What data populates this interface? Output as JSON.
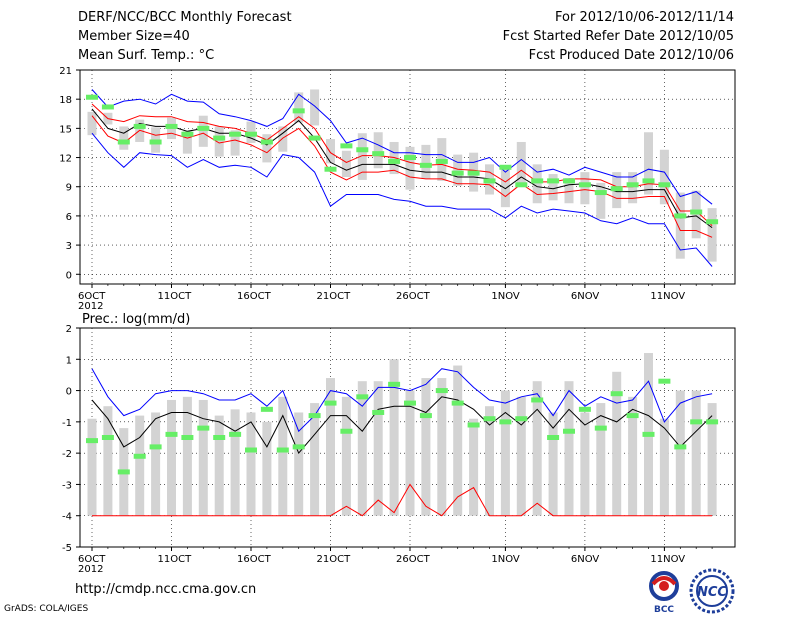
{
  "header": {
    "title": "DERF/NCC/BCC Monthly Forecast",
    "member_size": "Member Size=40",
    "variable": "Mean Surf. Temp.: °C",
    "period": "For 2012/10/06-2012/11/14",
    "started": "Fcst Started Refer Date 2012/10/05",
    "produced": "Fcst Produced Date 2012/10/06"
  },
  "footer": {
    "url": "http://cmdp.ncc.cma.gov.cn",
    "grads": "GrADS: COLA/IGES",
    "logo_left_text": "BCC",
    "logo_right_text": "NCC"
  },
  "colors": {
    "mean": "#000000",
    "extreme": "#0000ff",
    "spread": "#ff0000",
    "box": "#d3d3d3",
    "obs": "#66ee66"
  },
  "chart_data": [
    {
      "type": "line",
      "title": "Mean Surf. Temp.: °C",
      "ylim": [
        -1,
        21
      ],
      "yticks": [
        0,
        3,
        6,
        9,
        12,
        15,
        18,
        21
      ],
      "xticks": [
        {
          "day": 0,
          "label": "6OCT",
          "sub": "2012"
        },
        {
          "day": 5,
          "label": "11OCT"
        },
        {
          "day": 10,
          "label": "16OCT"
        },
        {
          "day": 15,
          "label": "21OCT"
        },
        {
          "day": 20,
          "label": "26OCT"
        },
        {
          "day": 26,
          "label": "1NOV"
        },
        {
          "day": 31,
          "label": "6NOV"
        },
        {
          "day": 36,
          "label": "11NOV"
        }
      ],
      "days": 40,
      "series": [
        {
          "name": "max",
          "values": [
            19,
            17.2,
            17.8,
            18,
            17.5,
            18.5,
            17.8,
            17.7,
            16.5,
            16.2,
            15.8,
            15.2,
            16,
            18.5,
            17.3,
            15.8,
            13.5,
            14,
            13.3,
            12.5,
            12.5,
            12.3,
            12.3,
            11.5,
            11.5,
            12,
            10.5,
            11.8,
            10.5,
            10.8,
            10.2,
            11,
            10.5,
            10,
            10,
            10.8,
            10.5,
            8,
            8.5,
            7.2
          ]
        },
        {
          "name": "upper",
          "values": [
            17.5,
            16,
            15.7,
            16.3,
            16.2,
            16.2,
            15.7,
            15.6,
            15.2,
            15,
            14.5,
            13.8,
            15,
            16.2,
            15,
            12.5,
            11.5,
            12.2,
            12.2,
            12,
            11.5,
            11.2,
            11.3,
            10.8,
            10.7,
            10.5,
            9.5,
            10.7,
            9.5,
            9.5,
            9.8,
            9.8,
            9.7,
            9,
            9,
            9.3,
            9.2,
            6.5,
            6.5,
            5
          ]
        },
        {
          "name": "mean",
          "values": [
            17,
            15,
            14.5,
            15.5,
            15.2,
            15.2,
            14.7,
            15,
            14.5,
            14.5,
            14,
            13.3,
            14.5,
            15.8,
            14,
            11.5,
            10.7,
            11.3,
            11.3,
            11.3,
            10.7,
            10.5,
            10.5,
            10,
            10,
            9.8,
            8.8,
            10,
            9,
            8.8,
            9.2,
            9.3,
            9,
            8.5,
            8.5,
            8.7,
            8.7,
            5.8,
            6,
            4.8
          ]
        },
        {
          "name": "lower",
          "values": [
            16.3,
            14.2,
            13.5,
            14.8,
            14.3,
            14.5,
            14,
            14.5,
            13.5,
            13.8,
            13.3,
            12.5,
            14,
            15,
            13.2,
            10.5,
            9.7,
            10.5,
            10.5,
            10.7,
            10,
            9.8,
            9.8,
            9.3,
            9.3,
            9.2,
            8,
            9.3,
            8.2,
            8.3,
            8.5,
            8.7,
            8.5,
            7.8,
            7.8,
            8,
            8,
            4.5,
            4.5,
            3.8
          ]
        },
        {
          "name": "min",
          "values": [
            14.5,
            12.5,
            11,
            12.5,
            12.3,
            12.2,
            11,
            11.8,
            11,
            11.2,
            11,
            10,
            12.3,
            12,
            10.5,
            7,
            8.2,
            8.2,
            8.2,
            7.7,
            7.5,
            7,
            7,
            6.7,
            6.7,
            6.7,
            5.8,
            7,
            6.3,
            6.7,
            6.5,
            6.3,
            5.5,
            5.2,
            5.8,
            5.2,
            5.2,
            2.5,
            2.7,
            0.8
          ]
        }
      ],
      "boxes": [
        [
          14.3,
          16.7
        ],
        [
          15.4,
          16.6
        ],
        [
          12.8,
          15.2
        ],
        [
          13.6,
          15.9
        ],
        [
          12.5,
          15.1
        ],
        [
          13.9,
          16.1
        ],
        [
          12.4,
          14.7
        ],
        [
          13.1,
          16.3
        ],
        [
          12.1,
          15.2
        ],
        [
          12.2,
          14.8
        ],
        [
          13.5,
          15.7
        ],
        [
          11.5,
          14.4
        ],
        [
          12.6,
          15.2
        ],
        [
          15.6,
          18.7
        ],
        [
          15.3,
          19
        ],
        [
          11.4,
          13.9
        ],
        [
          10,
          12.7
        ],
        [
          9.7,
          14.5
        ],
        [
          10.9,
          14.6
        ],
        [
          10.3,
          13.6
        ],
        [
          8.7,
          13.1
        ],
        [
          9.8,
          13.3
        ],
        [
          9.6,
          14
        ],
        [
          9.1,
          12.3
        ],
        [
          8.5,
          12.5
        ],
        [
          8.2,
          11.3
        ],
        [
          6.9,
          10.9
        ],
        [
          9.2,
          13.6
        ],
        [
          7.3,
          11.3
        ],
        [
          7.6,
          10.3
        ],
        [
          7.3,
          9.9
        ],
        [
          7.2,
          10.5
        ],
        [
          5.7,
          9.4
        ],
        [
          6.8,
          10.5
        ],
        [
          7.3,
          10.5
        ],
        [
          8.2,
          14.6
        ],
        [
          7.2,
          12.8
        ],
        [
          1.6,
          8.4
        ],
        [
          3.7,
          8.6
        ],
        [
          1.3,
          6.8
        ]
      ],
      "observed": [
        18.2,
        17.2,
        13.6,
        15.2,
        13.6,
        15.2,
        14.4,
        15,
        14,
        14.4,
        14.4,
        13.6,
        null,
        16.8,
        14,
        10.8,
        13.2,
        12.8,
        12.4,
        11.6,
        12,
        11.2,
        11.6,
        10.4,
        10.4,
        9.6,
        11,
        9.2,
        9.6,
        9.6,
        9.6,
        9.2,
        8.4,
        8.8,
        9.2,
        9.6,
        9.2,
        6,
        6.4,
        5.4
      ]
    },
    {
      "type": "line",
      "title": "Prec.: log(mm/d)",
      "ylim": [
        -5,
        2
      ],
      "yticks": [
        -5,
        -4,
        -3,
        -2,
        -1,
        0,
        1,
        2
      ],
      "xticks": [
        {
          "day": 0,
          "label": "6OCT",
          "sub": "2012"
        },
        {
          "day": 5,
          "label": "11OCT"
        },
        {
          "day": 10,
          "label": "16OCT"
        },
        {
          "day": 15,
          "label": "21OCT"
        },
        {
          "day": 20,
          "label": "26OCT"
        },
        {
          "day": 26,
          "label": "1NOV"
        },
        {
          "day": 31,
          "label": "6NOV"
        },
        {
          "day": 36,
          "label": "11NOV"
        }
      ],
      "days": 40,
      "series": [
        {
          "name": "max",
          "values": [
            0.7,
            -0.2,
            -0.8,
            -0.6,
            -0.1,
            0,
            0,
            -0.1,
            -0.3,
            -0.3,
            -0.1,
            -0.5,
            0,
            -1.3,
            -0.8,
            0,
            -0.1,
            -0.5,
            0.1,
            0.1,
            0,
            0.2,
            0.7,
            0.6,
            0.1,
            -0.3,
            -0.4,
            -0.2,
            -0.1,
            -0.8,
            0,
            -0.5,
            -0.2,
            -0.4,
            -0.3,
            0.3,
            -1,
            -0.4,
            -0.2,
            -0.1
          ]
        },
        {
          "name": "mean",
          "values": [
            -0.3,
            -0.9,
            -1.8,
            -1.5,
            -0.9,
            -0.7,
            -0.7,
            -0.9,
            -1,
            -1.3,
            -1,
            -1.8,
            -0.8,
            -2,
            -1.4,
            -0.8,
            -0.8,
            -1.3,
            -0.6,
            -0.5,
            -0.5,
            -0.7,
            -0.2,
            -0.3,
            -0.6,
            -1.1,
            -0.7,
            -1.1,
            -0.6,
            -1.2,
            -0.6,
            -1.1,
            -0.8,
            -1,
            -0.6,
            -0.8,
            -1.2,
            -1.8,
            -1.3,
            -0.8
          ]
        },
        {
          "name": "lower",
          "values": [
            -4,
            -4,
            -4,
            -4,
            -4,
            -4,
            -4,
            -4,
            -4,
            -4,
            -4,
            -4,
            -4,
            -4,
            -4,
            -4,
            -3.7,
            -4,
            -3.5,
            -3.9,
            -3,
            -3.7,
            -4,
            -3.4,
            -3.1,
            -4,
            -4,
            -4,
            -3.6,
            -4,
            -4,
            -4,
            -4,
            -4,
            -4,
            -4,
            -4,
            -4,
            -4,
            -4
          ]
        }
      ],
      "boxes": [
        [
          -4,
          -0.9
        ],
        [
          -4,
          -0.5
        ],
        [
          -4,
          -1.2
        ],
        [
          -4,
          -0.8
        ],
        [
          -4,
          -0.7
        ],
        [
          -4,
          -0.3
        ],
        [
          -4,
          -0.2
        ],
        [
          -4,
          -0.3
        ],
        [
          -4,
          -0.8
        ],
        [
          -4,
          -0.6
        ],
        [
          -4,
          -0.7
        ],
        [
          -4,
          -1
        ],
        [
          -4,
          -0.2
        ],
        [
          -4,
          -0.7
        ],
        [
          -4,
          -0.4
        ],
        [
          -4,
          0.4
        ],
        [
          -4,
          -0.2
        ],
        [
          -4,
          0.3
        ],
        [
          -4,
          0.3
        ],
        [
          -4,
          1
        ],
        [
          -4,
          0
        ],
        [
          -4,
          0.4
        ],
        [
          -4,
          0.4
        ],
        [
          -4,
          0.8
        ],
        [
          -4,
          -0.9
        ],
        [
          -4,
          -0.5
        ],
        [
          -4,
          0
        ],
        [
          -4,
          -0.2
        ],
        [
          -4,
          0.3
        ],
        [
          -4,
          -0.7
        ],
        [
          -4,
          0.3
        ],
        [
          -4,
          -0.7
        ],
        [
          -4,
          -0.4
        ],
        [
          -4,
          0.6
        ],
        [
          -4,
          -0.2
        ],
        [
          -4,
          1.2
        ],
        [
          -4,
          -0.9
        ],
        [
          -4,
          0
        ],
        [
          -4,
          0
        ],
        [
          -4,
          -0.4
        ]
      ],
      "observed": [
        -1.6,
        -1.5,
        -2.6,
        -2.1,
        -1.8,
        -1.4,
        -1.5,
        -1.2,
        -1.5,
        -1.4,
        -1.9,
        -0.6,
        -1.9,
        -1.8,
        -0.8,
        -0.4,
        -1.3,
        -0.2,
        -0.7,
        0.2,
        -0.4,
        -0.8,
        0,
        -0.4,
        -1.1,
        -0.9,
        -1,
        -0.9,
        -0.3,
        -1.5,
        -1.3,
        -0.6,
        -1.2,
        -0.1,
        -0.8,
        -1.4,
        0.3,
        -1.8,
        -1,
        -1
      ]
    }
  ]
}
